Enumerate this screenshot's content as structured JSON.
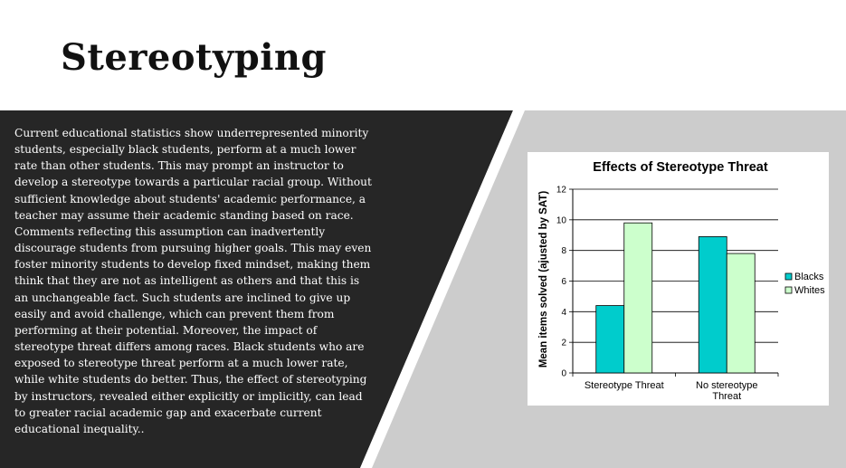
{
  "slide": {
    "title": "Stereotyping",
    "body": "Current educational statistics show underrepresented minority students, especially black students, perform at a much lower rate than other students. This may prompt an instructor to develop a stereotype towards a particular racial group. Without sufficient knowledge about students' academic performance, a teacher may assume their academic standing based on race. Comments reflecting this assumption can inadvertently discourage students from pursuing higher goals. This may even foster minority students to develop fixed mindset, making them think that they are not as intelligent as others and that this is an unchangeable fact. Such students are inclined to give up easily and avoid challenge, which can prevent them from performing at their potential. Moreover, the impact of stereotype threat differs among races. Black students who are exposed to stereotype threat perform at a much lower rate, while white students do better. Thus, the effect of stereotyping by instructors, revealed either explicitly or implicitly, can lead to greater racial academic gap and exacerbate current educational inequality.."
  },
  "colors": {
    "dark_panel": "#262626",
    "gray_band": "#cccccc",
    "blacks_bar": "#00cccc",
    "whites_bar": "#ccffcc"
  },
  "chart_data": {
    "type": "bar",
    "title": "Effects of Stereotype Threat",
    "xlabel": "",
    "ylabel": "Mean items solved (ajusted by SAT)",
    "categories": [
      "Stereotype Threat",
      "No stereotype Threat"
    ],
    "series": [
      {
        "name": "Blacks",
        "values": [
          4.4,
          8.9
        ]
      },
      {
        "name": "Whites",
        "values": [
          9.8,
          7.8
        ]
      }
    ],
    "ylim": [
      0,
      12
    ],
    "yticks": [
      0,
      2,
      4,
      6,
      8,
      10,
      12
    ],
    "grid": true,
    "legend": "right"
  }
}
